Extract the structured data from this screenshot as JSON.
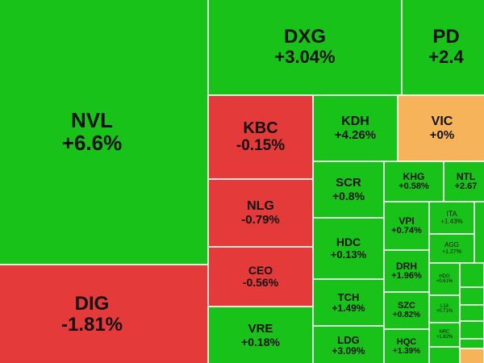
{
  "chart_data": {
    "type": "heatmap",
    "title": "",
    "value_format": "percent_change",
    "color_scale": {
      "positive": "#19c219",
      "negative": "#e53a3a",
      "neutral": "#f7b35a"
    },
    "tiles": [
      {
        "ticker": "NVL",
        "change": "+6.6%",
        "value": 6.6
      },
      {
        "ticker": "DIG",
        "change": "-1.81%",
        "value": -1.81
      },
      {
        "ticker": "DXG",
        "change": "+3.04%",
        "value": 3.04
      },
      {
        "ticker": "PD",
        "change": "+2.4",
        "value": 2.4
      },
      {
        "ticker": "KBC",
        "change": "-0.15%",
        "value": -0.15
      },
      {
        "ticker": "KDH",
        "change": "+4.26%",
        "value": 4.26
      },
      {
        "ticker": "VIC",
        "change": "+0%",
        "value": 0
      },
      {
        "ticker": "NLG",
        "change": "-0.79%",
        "value": -0.79
      },
      {
        "ticker": "CEO",
        "change": "-0.56%",
        "value": -0.56
      },
      {
        "ticker": "VRE",
        "change": "+0.18%",
        "value": 0.18
      },
      {
        "ticker": "SCR",
        "change": "+0.8%",
        "value": 0.8
      },
      {
        "ticker": "HDC",
        "change": "+0.13%",
        "value": 0.13
      },
      {
        "ticker": "TCH",
        "change": "+1.49%",
        "value": 1.49
      },
      {
        "ticker": "LDG",
        "change": "+3.09%",
        "value": 3.09
      },
      {
        "ticker": "KHG",
        "change": "+0.58%",
        "value": 0.58
      },
      {
        "ticker": "NTL",
        "change": "+2.67",
        "value": 2.67
      },
      {
        "ticker": "VPI",
        "change": "+0.74%",
        "value": 0.74
      },
      {
        "ticker": "DRH",
        "change": "+1.96%",
        "value": 1.96
      },
      {
        "ticker": "SZC",
        "change": "+0.82%",
        "value": 0.82
      },
      {
        "ticker": "HQC",
        "change": "+1.39%",
        "value": 1.39
      },
      {
        "ticker": "ITA",
        "change": "+1.43%",
        "value": 1.43
      },
      {
        "ticker": "AGG",
        "change": "+1.27%",
        "value": 1.27
      },
      {
        "ticker": "HDG",
        "change": "+0.61%",
        "value": 0.61
      },
      {
        "ticker": "L14",
        "change": "+0.71%",
        "value": 0.71
      },
      {
        "ticker": "NRC",
        "change": "+1.82%",
        "value": 1.82
      }
    ]
  }
}
